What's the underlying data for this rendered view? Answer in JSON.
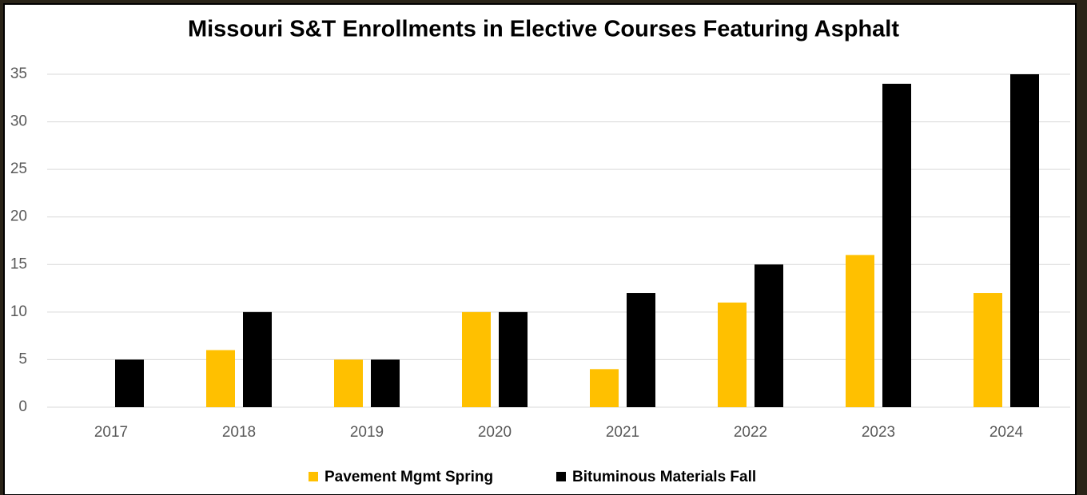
{
  "chart_data": {
    "type": "bar",
    "title": "Missouri S&T Enrollments in Elective Courses Featuring Asphalt",
    "categories": [
      "2017",
      "2018",
      "2019",
      "2020",
      "2021",
      "2022",
      "2023",
      "2024"
    ],
    "series": [
      {
        "name": "Pavement Mgmt Spring",
        "color": "#FFC000",
        "values": [
          0,
          6,
          5,
          10,
          4,
          11,
          16,
          12
        ]
      },
      {
        "name": "Bituminous Materials Fall",
        "color": "#000000",
        "values": [
          5,
          10,
          5,
          10,
          12,
          15,
          34,
          35
        ]
      }
    ],
    "ylim": [
      0,
      35
    ],
    "yticks": [
      0,
      5,
      10,
      15,
      20,
      25,
      30,
      35
    ],
    "grid": true,
    "legend": "bottom"
  }
}
